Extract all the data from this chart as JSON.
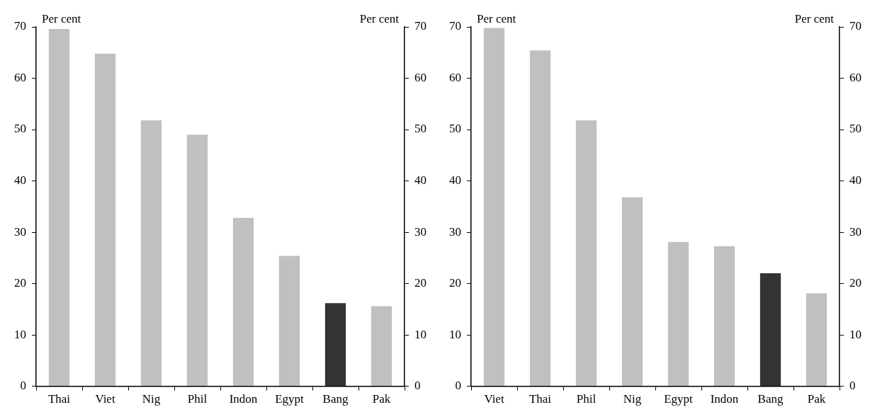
{
  "chart_data": [
    {
      "type": "bar",
      "ylabel": "Per cent",
      "y2label": "Per cent",
      "categories": [
        "Thai",
        "Viet",
        "Nig",
        "Phil",
        "Indon",
        "Egypt",
        "Bang",
        "Pak"
      ],
      "values": [
        69.6,
        64.8,
        51.8,
        49,
        32.8,
        25.4,
        16.2,
        15.6
      ],
      "colors": [
        "#c0c0c0",
        "#c0c0c0",
        "#c0c0c0",
        "#c0c0c0",
        "#c0c0c0",
        "#c0c0c0",
        "#333333",
        "#c0c0c0"
      ],
      "ylim": [
        0,
        70
      ],
      "yticks": [
        0,
        10,
        20,
        30,
        40,
        50,
        60,
        70
      ],
      "y2lim": [
        0,
        70
      ],
      "y2ticks": [
        0,
        10,
        20,
        30,
        40,
        50,
        60,
        70
      ],
      "grid": false,
      "legend": false
    },
    {
      "type": "bar",
      "ylabel": "Per cent",
      "y2label": "Per cent",
      "categories": [
        "Viet",
        "Thai",
        "Phil",
        "Nig",
        "Egypt",
        "Indon",
        "Bang",
        "Pak"
      ],
      "values": [
        69.8,
        65.4,
        51.8,
        36.8,
        28.1,
        27.3,
        22,
        18.1
      ],
      "colors": [
        "#c0c0c0",
        "#c0c0c0",
        "#c0c0c0",
        "#c0c0c0",
        "#c0c0c0",
        "#c0c0c0",
        "#333333",
        "#c0c0c0"
      ],
      "ylim": [
        0,
        70
      ],
      "yticks": [
        0,
        10,
        20,
        30,
        40,
        50,
        60,
        70
      ],
      "y2lim": [
        0,
        70
      ],
      "y2ticks": [
        0,
        10,
        20,
        30,
        40,
        50,
        60,
        70
      ],
      "grid": false,
      "legend": false
    }
  ]
}
